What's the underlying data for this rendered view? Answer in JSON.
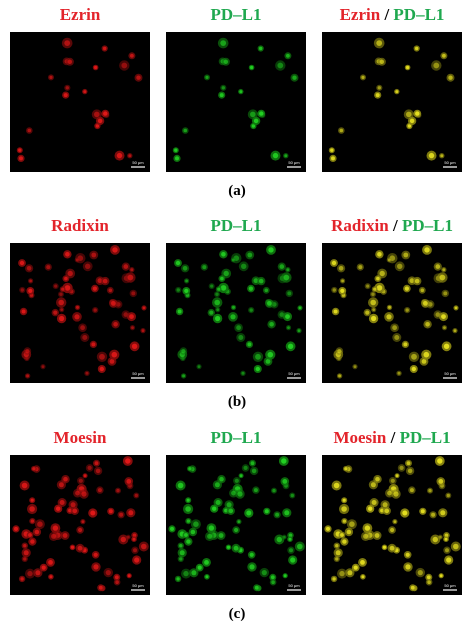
{
  "panels": [
    {
      "labels": {
        "red": "Ezrin",
        "green": "PD–L1",
        "separator": "/"
      },
      "scale_bar": "50 μm",
      "caption": "(a)"
    },
    {
      "labels": {
        "red": "Radixin",
        "green": "PD–L1",
        "separator": "/"
      },
      "scale_bar": "50 μm",
      "caption": "(b)"
    },
    {
      "labels": {
        "red": "Moesin",
        "green": "PD–L1",
        "separator": "/"
      },
      "scale_bar": "50 μm",
      "caption": "(c)"
    }
  ]
}
